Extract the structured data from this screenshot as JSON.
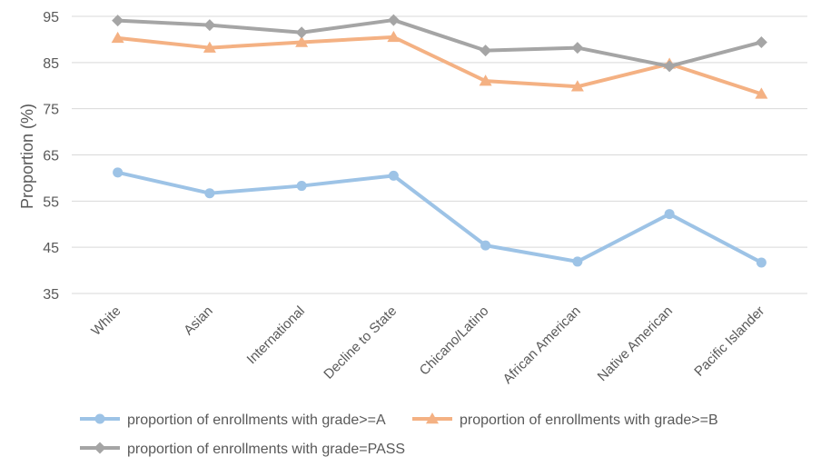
{
  "chart_data": {
    "type": "line",
    "title": "",
    "xlabel": "",
    "ylabel": "Proportion (%)",
    "ylim": [
      35,
      95
    ],
    "yticks": [
      35,
      45,
      55,
      65,
      75,
      85,
      95
    ],
    "grid": true,
    "legend_position": "bottom",
    "categories": [
      "White",
      "Asian",
      "International",
      "Decline to State",
      "Chicano/Latino",
      "African American",
      "Native American",
      "Pacific Islander"
    ],
    "series": [
      {
        "name": "proportion of enrollments with grade>=A",
        "color": "#9DC3E6",
        "marker": "circle",
        "values": [
          61.2,
          56.7,
          58.3,
          60.5,
          45.4,
          41.9,
          52.2,
          41.7
        ]
      },
      {
        "name": "proportion of enrollments with grade>=B",
        "color": "#F4B183",
        "marker": "triangle",
        "values": [
          90.3,
          88.2,
          89.4,
          90.5,
          81.0,
          79.8,
          84.7,
          78.2
        ]
      },
      {
        "name": "proportion of enrollments with grade=PASS",
        "color": "#A5A5A5",
        "marker": "diamond",
        "values": [
          94.1,
          93.1,
          91.5,
          94.2,
          87.6,
          88.2,
          84.2,
          89.4
        ]
      }
    ]
  }
}
